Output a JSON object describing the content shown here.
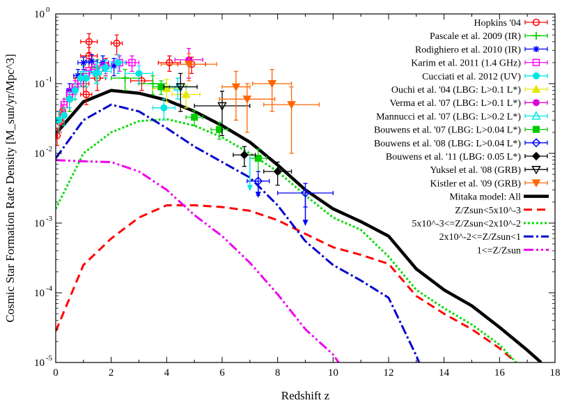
{
  "chart_data": {
    "type": "scatter",
    "title": "",
    "xlabel": "Redshift z",
    "ylabel": "Cosmic Star Formation Rate Density [M_sun/yr/Mpc^3]",
    "xlim": [
      0,
      18
    ],
    "ylim": [
      1e-05,
      1
    ],
    "yscale": "log",
    "grid": false,
    "legend_position": "top-right",
    "x_ticks": [
      "0",
      "2",
      "4",
      "6",
      "8",
      "10",
      "12",
      "14",
      "16",
      "18"
    ],
    "y_ticks": [
      {
        "base": "10",
        "exp": "-5"
      },
      {
        "base": "10",
        "exp": "-4"
      },
      {
        "base": "10",
        "exp": "-3"
      },
      {
        "base": "10",
        "exp": "-2"
      },
      {
        "base": "10",
        "exp": "-1"
      },
      {
        "base": "10",
        "exp": "0"
      }
    ],
    "observations": [
      {
        "name": "Hopkins '04",
        "color": "#ff0000",
        "marker": "circle-open",
        "points": [
          [
            0.05,
            0.018,
            0.02,
            0.005
          ],
          [
            0.15,
            0.028,
            0.05,
            0.008
          ],
          [
            0.25,
            0.04,
            0.05,
            0.01
          ],
          [
            0.5,
            0.06,
            0.1,
            0.02
          ],
          [
            0.7,
            0.09,
            0.1,
            0.03
          ],
          [
            1.0,
            0.1,
            0.2,
            0.03
          ],
          [
            1.2,
            0.25,
            0.3,
            0.08
          ],
          [
            1.2,
            0.4,
            0.3,
            0.12
          ],
          [
            1.5,
            0.12,
            0.3,
            0.04
          ],
          [
            1.8,
            0.18,
            0.3,
            0.05
          ],
          [
            2.2,
            0.38,
            0.2,
            0.12
          ],
          [
            3.1,
            0.11,
            0.4,
            0.03
          ],
          [
            4.1,
            0.2,
            0.4,
            0.05
          ],
          [
            4.9,
            0.19,
            0.5,
            0.05
          ],
          [
            1.1,
            0.07,
            0.2,
            0.02
          ]
        ]
      },
      {
        "name": "Pascale et al. 2009 (IR)",
        "color": "#00cc00",
        "marker": "plus",
        "points": [
          [
            0.5,
            0.06,
            0.2,
            0.02
          ],
          [
            1.0,
            0.14,
            0.2,
            0.04
          ],
          [
            1.5,
            0.17,
            0.2,
            0.05
          ],
          [
            2.5,
            0.12,
            0.5,
            0.04
          ],
          [
            3.5,
            0.1,
            0.5,
            0.03
          ]
        ]
      },
      {
        "name": "Rodighiero et al. 2010 (IR)",
        "color": "#0000ff",
        "marker": "star",
        "points": [
          [
            0.5,
            0.08,
            0.1,
            0.02
          ],
          [
            0.8,
            0.13,
            0.15,
            0.03
          ],
          [
            1.0,
            0.2,
            0.2,
            0.04
          ],
          [
            1.3,
            0.21,
            0.2,
            0.05
          ],
          [
            1.7,
            0.2,
            0.2,
            0.05
          ],
          [
            2.1,
            0.18,
            0.2,
            0.05
          ]
        ]
      },
      {
        "name": "Karim et al. 2011 (1.4 GHz)",
        "color": "#ff00ff",
        "marker": "square-open",
        "points": [
          [
            0.3,
            0.05,
            0.1,
            0.01
          ],
          [
            0.5,
            0.07,
            0.1,
            0.015
          ],
          [
            0.7,
            0.09,
            0.1,
            0.02
          ],
          [
            0.9,
            0.11,
            0.1,
            0.02
          ],
          [
            1.1,
            0.14,
            0.1,
            0.03
          ],
          [
            1.4,
            0.16,
            0.15,
            0.03
          ],
          [
            1.8,
            0.18,
            0.2,
            0.04
          ],
          [
            2.3,
            0.2,
            0.25,
            0.05
          ],
          [
            2.75,
            0.2,
            0.25,
            0.05
          ]
        ]
      },
      {
        "name": "Cucciati et al. 2012 (UV)",
        "color": "#00e5e5",
        "marker": "circle-filled",
        "points": [
          [
            0.1,
            0.03,
            0.1,
            0.01
          ],
          [
            0.3,
            0.035,
            0.1,
            0.01
          ],
          [
            0.5,
            0.06,
            0.1,
            0.015
          ],
          [
            0.7,
            0.08,
            0.1,
            0.02
          ],
          [
            0.9,
            0.12,
            0.1,
            0.03
          ],
          [
            1.1,
            0.12,
            0.1,
            0.03
          ],
          [
            1.45,
            0.14,
            0.2,
            0.04
          ],
          [
            1.8,
            0.17,
            0.2,
            0.05
          ],
          [
            2.25,
            0.2,
            0.25,
            0.06
          ],
          [
            3.0,
            0.14,
            0.5,
            0.04
          ],
          [
            3.9,
            0.045,
            0.4,
            0.015
          ]
        ]
      },
      {
        "name": "Ouchi et al. '04 (LBG: L>0.1 L*)",
        "color": "#e6e600",
        "marker": "triangle-up-filled",
        "points": [
          [
            4.0,
            0.085,
            0.5,
            0.03
          ],
          [
            4.7,
            0.07,
            0.5,
            0.025
          ]
        ]
      },
      {
        "name": "Verma et al. '07 (LBG: L>0.1 L*)",
        "color": "#dd00dd",
        "marker": "circle-filled",
        "points": [
          [
            4.8,
            0.22,
            0.5,
            0.1
          ]
        ]
      },
      {
        "name": "Mannucci et al. '07 (LBG: L>0.2 L*)",
        "color": "#00e5e5",
        "marker": "triangle-up-open",
        "points": [
          [
            4.4,
            0.09,
            0.3,
            0.03
          ],
          [
            1.5,
            0.15,
            0.5,
            0.05
          ]
        ]
      },
      {
        "name": "Bouwens et al. '07 (LBG: L>0.04 L*)",
        "color": "#00cc00",
        "marker": "square-filled",
        "points": [
          [
            3.8,
            0.09,
            0.3,
            0.02
          ],
          [
            5.0,
            0.033,
            0.3,
            0.008
          ],
          [
            5.9,
            0.022,
            0.3,
            0.006
          ],
          [
            7.3,
            0.0085,
            0.3,
            0.003
          ]
        ]
      },
      {
        "name": "Bouwens et al. '08 (LBG: L>0.04 L*)",
        "color": "#0000ff",
        "marker": "diamond-open",
        "points": [
          [
            7.3,
            0.004,
            0.4,
            0.0015
          ],
          [
            9.0,
            0.0027,
            1.0,
            0.001
          ]
        ]
      },
      {
        "name": "Bouwens et al. '11 (LBG: 0.05 L*)",
        "color": "#000000",
        "marker": "diamond-filled",
        "points": [
          [
            6.8,
            0.0095,
            0.4,
            0.003
          ],
          [
            8.0,
            0.0055,
            0.5,
            0.002
          ]
        ]
      },
      {
        "name": "Yuksel et al. '08 (GRB)",
        "color": "#000000",
        "marker": "triangle-down-open",
        "points": [
          [
            4.5,
            0.09,
            0.6,
            0.05
          ],
          [
            6.0,
            0.048,
            1.0,
            0.03
          ]
        ]
      },
      {
        "name": "Kistler et al. '09 (GRB)",
        "color": "#ff6600",
        "marker": "triangle-down-filled",
        "points": [
          [
            4.8,
            0.19,
            1.0,
            0.08
          ],
          [
            6.5,
            0.09,
            0.5,
            0.06
          ],
          [
            6.9,
            0.06,
            1.0,
            0.04
          ],
          [
            7.8,
            0.1,
            0.7,
            0.06
          ],
          [
            8.5,
            0.05,
            1.0,
            0.04
          ]
        ]
      }
    ],
    "models": [
      {
        "name": "Mitaka model: All",
        "color": "#000000",
        "dash": "solid",
        "width": 4.5,
        "x": [
          0,
          1,
          2,
          3,
          4,
          5,
          6,
          7,
          8,
          9,
          10,
          11,
          12,
          13,
          14,
          15,
          16,
          17,
          17.5
        ],
        "y": [
          0.019,
          0.055,
          0.08,
          0.073,
          0.058,
          0.04,
          0.025,
          0.0145,
          0.0068,
          0.003,
          0.0016,
          0.00105,
          0.00065,
          0.00022,
          0.00011,
          6.5e-05,
          3.2e-05,
          1.5e-05,
          1e-05
        ]
      },
      {
        "name": "Z/Zsun<5x10^-3",
        "color": "#ff0000",
        "dash": "12,7",
        "width": 3,
        "x": [
          0,
          1,
          2,
          3,
          4,
          5,
          6,
          7,
          8,
          9,
          10,
          11,
          12,
          13,
          14,
          15,
          16,
          16.6
        ],
        "y": [
          2.8e-05,
          0.00025,
          0.0006,
          0.0012,
          0.0018,
          0.0018,
          0.0017,
          0.0015,
          0.0011,
          0.0007,
          0.00045,
          0.00035,
          0.00026,
          9e-05,
          5e-05,
          3e-05,
          1.6e-05,
          1e-05
        ]
      },
      {
        "name": "5x10^-3<=Z/Zsun<2x10^-2",
        "color": "#00dd00",
        "dash": "3,3",
        "width": 3,
        "x": [
          0,
          1,
          2,
          3,
          4,
          5,
          6,
          7,
          8,
          9,
          10,
          11,
          12,
          13,
          14,
          15,
          16,
          16.6
        ],
        "y": [
          0.0016,
          0.01,
          0.02,
          0.029,
          0.031,
          0.025,
          0.017,
          0.01,
          0.0055,
          0.0025,
          0.0012,
          0.0008,
          0.00033,
          0.00011,
          6e-05,
          3.5e-05,
          1.8e-05,
          1e-05
        ]
      },
      {
        "name": "2x10^-2<=Z/Zsun<1",
        "color": "#0000cc",
        "dash": "14,4,3,4",
        "width": 3,
        "x": [
          0,
          1,
          2,
          3,
          4,
          5,
          6,
          7,
          8,
          9,
          10,
          11,
          12,
          13,
          13.1
        ],
        "y": [
          0.0085,
          0.03,
          0.05,
          0.04,
          0.023,
          0.0125,
          0.0075,
          0.0045,
          0.0018,
          0.00055,
          0.00025,
          0.00015,
          8.5e-05,
          1.25e-05,
          1e-05
        ]
      },
      {
        "name": "1<=Z/Zsun",
        "color": "#ee00ee",
        "dash": "14,4,3,4,3,4",
        "width": 3,
        "x": [
          0,
          1,
          2,
          3,
          4,
          5,
          6,
          7,
          8,
          9,
          10,
          10.2
        ],
        "y": [
          0.008,
          0.0077,
          0.0075,
          0.0055,
          0.003,
          0.0013,
          0.00065,
          0.00027,
          9.5e-05,
          3e-05,
          1.3e-05,
          1e-05
        ]
      }
    ],
    "upper_limits": [
      {
        "color": "#00e5e5",
        "x": 7.0,
        "y_from": 0.009,
        "y_to": 0.003
      },
      {
        "color": "#0000ff",
        "x": 9.0,
        "y_from": 0.0027,
        "y_to": 0.00095
      },
      {
        "color": "#0000ff",
        "x": 7.3,
        "y_from": 0.004,
        "y_to": 0.0024
      }
    ],
    "legend": [
      {
        "label": "Hopkins '04",
        "kind": "obs",
        "ref": 0
      },
      {
        "label": "Pascale et al. 2009 (IR)",
        "kind": "obs",
        "ref": 1
      },
      {
        "label": "Rodighiero et al. 2010 (IR)",
        "kind": "obs",
        "ref": 2
      },
      {
        "label": "Karim et al. 2011 (1.4 GHz)",
        "kind": "obs",
        "ref": 3
      },
      {
        "label": "Cucciati et al. 2012 (UV)",
        "kind": "obs",
        "ref": 4
      },
      {
        "label": "Ouchi et al. '04 (LBG: L>0.1 L*)",
        "kind": "obs",
        "ref": 5
      },
      {
        "label": "Verma et al. '07 (LBG: L>0.1 L*)",
        "kind": "obs",
        "ref": 6
      },
      {
        "label": "Mannucci et al. '07 (LBG: L>0.2 L*)",
        "kind": "obs",
        "ref": 7
      },
      {
        "label": "Bouwens et al. '07 (LBG: L>0.04 L*)",
        "kind": "obs",
        "ref": 8
      },
      {
        "label": "Bouwens et al. '08 (LBG: L>0.04 L*)",
        "kind": "obs",
        "ref": 9
      },
      {
        "label": "Bouwens et al. '11 (LBG: 0.05 L*)",
        "kind": "obs",
        "ref": 10
      },
      {
        "label": "Yuksel et al. '08 (GRB)",
        "kind": "obs",
        "ref": 11
      },
      {
        "label": "Kistler et al. '09 (GRB)",
        "kind": "obs",
        "ref": 12
      },
      {
        "label": "Mitaka model: All",
        "kind": "model",
        "ref": 0
      },
      {
        "label": "Z/Zsun<5x10^-3",
        "kind": "model",
        "ref": 1
      },
      {
        "label": "5x10^-3<=Z/Zsun<2x10^-2",
        "kind": "model",
        "ref": 2
      },
      {
        "label": "2x10^-2<=Z/Zsun<1",
        "kind": "model",
        "ref": 3
      },
      {
        "label": "1<=Z/Zsun",
        "kind": "model",
        "ref": 4
      }
    ]
  }
}
